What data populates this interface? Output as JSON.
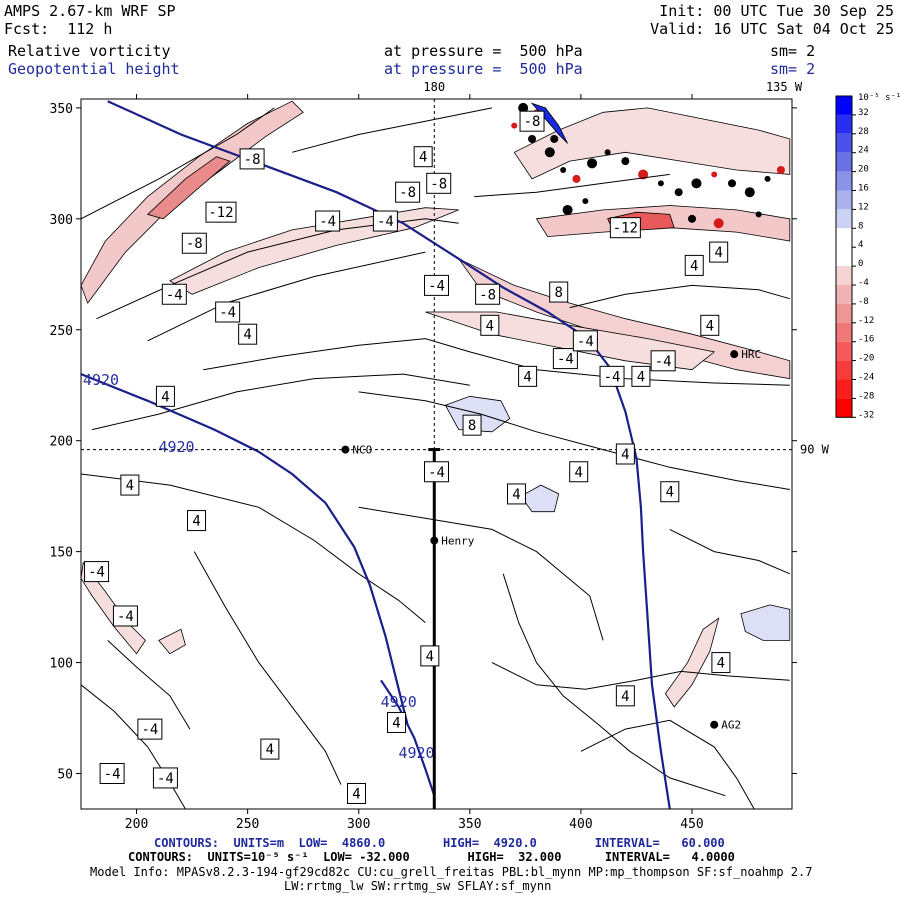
{
  "header": {
    "model_title": "AMPS 2.67-km WRF SP",
    "forecast": "Fcst:  112 h",
    "init": "Init: 00 UTC Tue 30 Sep 25",
    "valid": "Valid: 16 UTC Sat 04 Oct 25",
    "field1": {
      "name": "Relative vorticity",
      "level": "at pressure =  500 hPa",
      "smooth": "sm= 2"
    },
    "field2": {
      "name": "Geopotential height",
      "level": "at pressure =  500 hPa",
      "smooth": "sm= 2"
    }
  },
  "colorbar": {
    "unit": "10⁻⁵ s⁻¹",
    "ticks": [
      "32",
      "28",
      "24",
      "20",
      "16",
      "12",
      "8",
      "4",
      "0",
      "-4",
      "-8",
      "-12",
      "-16",
      "-20",
      "-24",
      "-28",
      "-32"
    ],
    "colors_top_to_bottom": [
      "#0000ff",
      "#2a2ef5",
      "#4a52ea",
      "#6a72e6",
      "#8a93ea",
      "#aab2f0",
      "#ccd2f6",
      "#ffffff",
      "#ffffff",
      "#f6d4d4",
      "#f0b4b4",
      "#ee9696",
      "#f07878",
      "#f45a5a",
      "#f83c3c",
      "#fc1e1e",
      "#ff0000"
    ]
  },
  "chart_data": {
    "type": "contour",
    "xlim": [
      175,
      495
    ],
    "ylim": [
      34,
      354
    ],
    "xticks": [
      200,
      250,
      300,
      350,
      400,
      450
    ],
    "yticks": [
      50,
      100,
      150,
      200,
      250,
      300,
      350
    ],
    "lon_labels": {
      "top": "180",
      "top_right": "135 W",
      "right": "90 W"
    },
    "height_contour_value": "4920",
    "height_contours": [
      {
        "label": "4920",
        "points": [
          [
            187,
            353
          ],
          [
            220,
            338
          ],
          [
            255,
            325
          ],
          [
            290,
            312
          ],
          [
            320,
            298
          ],
          [
            345,
            282
          ],
          [
            365,
            269
          ],
          [
            385,
            258
          ],
          [
            403,
            246
          ],
          [
            413,
            233
          ],
          [
            420,
            213
          ],
          [
            425,
            192
          ],
          [
            427,
            170
          ],
          [
            428,
            150
          ],
          [
            430,
            120
          ],
          [
            432,
            90
          ],
          [
            436,
            60
          ],
          [
            440,
            34
          ]
        ]
      },
      {
        "label": "4920",
        "points": [
          [
            175,
            230
          ],
          [
            205,
            218
          ],
          [
            235,
            205
          ],
          [
            255,
            195
          ],
          [
            270,
            185
          ],
          [
            285,
            172
          ],
          [
            298,
            152
          ],
          [
            305,
            135
          ],
          [
            312,
            112
          ],
          [
            318,
            88
          ],
          [
            322,
            72
          ]
        ]
      },
      {
        "label": "4920",
        "points": [
          [
            310,
            92
          ],
          [
            318,
            80
          ],
          [
            325,
            66
          ],
          [
            330,
            52
          ],
          [
            334,
            40
          ]
        ]
      }
    ],
    "vorticity_labels": [
      {
        "x": 252,
        "y": 327,
        "v": "-8"
      },
      {
        "x": 238,
        "y": 303,
        "v": "-12"
      },
      {
        "x": 226,
        "y": 289,
        "v": "-8"
      },
      {
        "x": 217,
        "y": 266,
        "v": "-4"
      },
      {
        "x": 241,
        "y": 258,
        "v": "-4"
      },
      {
        "x": 250,
        "y": 248,
        "v": "4"
      },
      {
        "x": 286,
        "y": 299,
        "v": "-4"
      },
      {
        "x": 312,
        "y": 299,
        "v": "-4"
      },
      {
        "x": 322,
        "y": 312,
        "v": "-8"
      },
      {
        "x": 336,
        "y": 316,
        "v": "-8"
      },
      {
        "x": 329,
        "y": 328,
        "v": "4"
      },
      {
        "x": 335,
        "y": 270,
        "v": "-4"
      },
      {
        "x": 358,
        "y": 266,
        "v": "-8"
      },
      {
        "x": 359,
        "y": 252,
        "v": "4"
      },
      {
        "x": 390,
        "y": 267,
        "v": "8"
      },
      {
        "x": 393,
        "y": 237,
        "v": "-4"
      },
      {
        "x": 402,
        "y": 245,
        "v": "-4"
      },
      {
        "x": 414,
        "y": 229,
        "v": "-4"
      },
      {
        "x": 458,
        "y": 252,
        "v": "4"
      },
      {
        "x": 437,
        "y": 236,
        "v": "-4"
      },
      {
        "x": 427,
        "y": 229,
        "v": "4"
      },
      {
        "x": 376,
        "y": 229,
        "v": "4"
      },
      {
        "x": 213,
        "y": 220,
        "v": "4"
      },
      {
        "x": 351,
        "y": 207,
        "v": "8"
      },
      {
        "x": 197,
        "y": 180,
        "v": "4"
      },
      {
        "x": 227,
        "y": 164,
        "v": "4"
      },
      {
        "x": 182,
        "y": 141,
        "v": "-4"
      },
      {
        "x": 195,
        "y": 121,
        "v": "-4"
      },
      {
        "x": 332,
        "y": 103,
        "v": "4"
      },
      {
        "x": 335,
        "y": 186,
        "v": "-4"
      },
      {
        "x": 371,
        "y": 176,
        "v": "4"
      },
      {
        "x": 399,
        "y": 186,
        "v": "4"
      },
      {
        "x": 440,
        "y": 177,
        "v": "4"
      },
      {
        "x": 206,
        "y": 70,
        "v": "-4"
      },
      {
        "x": 260,
        "y": 61,
        "v": "4"
      },
      {
        "x": 317,
        "y": 73,
        "v": "4"
      },
      {
        "x": 420,
        "y": 85,
        "v": "4"
      },
      {
        "x": 463,
        "y": 100,
        "v": "4"
      },
      {
        "x": 213,
        "y": 48,
        "v": "-4"
      },
      {
        "x": 189,
        "y": 50,
        "v": "-4"
      },
      {
        "x": 299,
        "y": 41,
        "v": "4"
      },
      {
        "x": 378,
        "y": 344,
        "v": "-8"
      },
      {
        "x": 420,
        "y": 296,
        "v": "-12"
      },
      {
        "x": 420,
        "y": 194,
        "v": "4"
      },
      {
        "x": 451,
        "y": 279,
        "v": "4"
      },
      {
        "x": 462,
        "y": 285,
        "v": "4"
      }
    ],
    "stations": [
      {
        "name": "NCO",
        "x": 294,
        "y": 196
      },
      {
        "name": "Henry",
        "x": 334,
        "y": 155
      },
      {
        "name": "HRC",
        "x": 469,
        "y": 239
      },
      {
        "name": "AG2",
        "x": 460,
        "y": 72
      }
    ],
    "cross_section": {
      "x": 334,
      "y_from": 34,
      "y_to": 196
    }
  },
  "footer": {
    "line1": "CONTOURS:  UNITS=m  LOW=  4860.0        HIGH=  4920.0        INTERVAL=   60.000",
    "line2": "CONTOURS:  UNITS=10⁻⁵ s⁻¹  LOW= -32.000        HIGH=  32.000      INTERVAL=   4.0000",
    "line3": "Model Info: MPASv8.2.3-194-gf29cd82c CU:cu_grell_freitas PBL:bl_mynn MP:mp_thompson SF:sf_noahmp 2.7",
    "line4": "LW:rrtmg_lw SW:rrtmg_sw SFLAY:sf_mynn"
  }
}
